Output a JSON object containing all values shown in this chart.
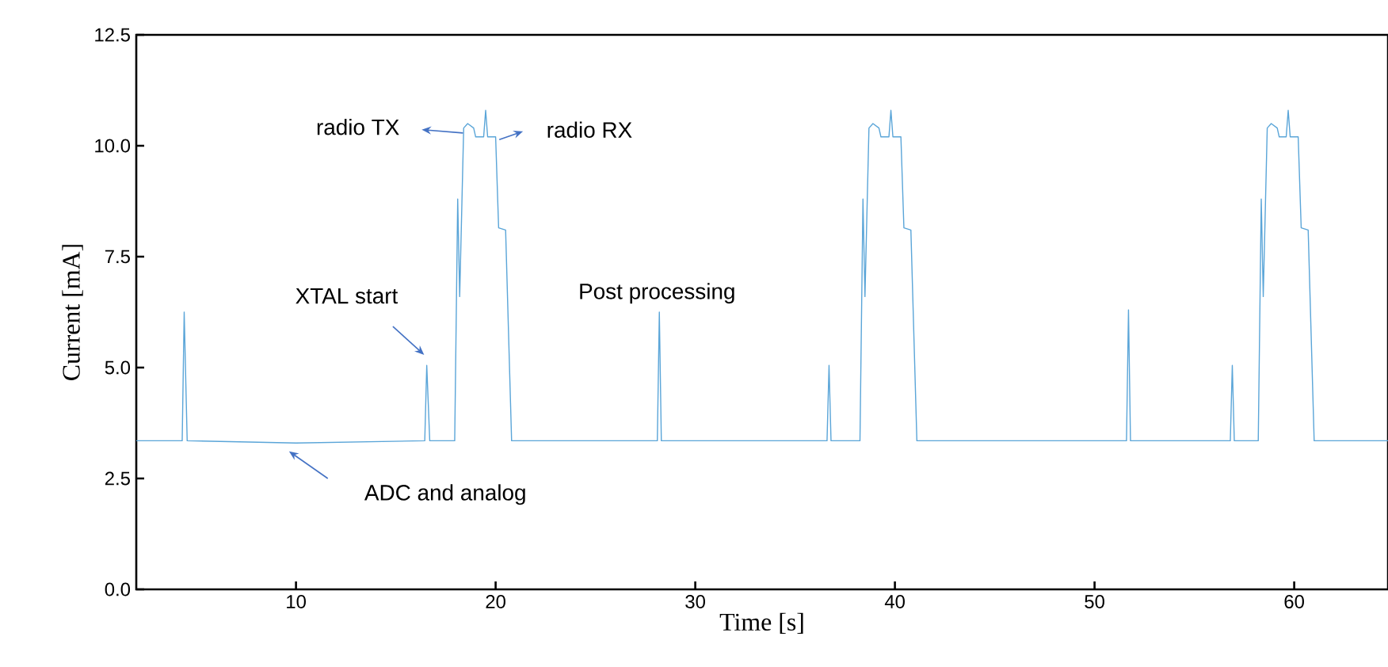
{
  "chart_data": {
    "type": "line",
    "xlabel": "Time [s]",
    "ylabel": "Current [mA]",
    "xlim": [
      2,
      64.7
    ],
    "ylim": [
      0,
      12.5
    ],
    "xticks": [
      10,
      20,
      30,
      40,
      50,
      60
    ],
    "yticks": [
      {
        "value": 0,
        "label": "0.0"
      },
      {
        "value": 2.5,
        "label": "2.5"
      },
      {
        "value": 5,
        "label": "5.0"
      },
      {
        "value": 7.5,
        "label": "7.5"
      },
      {
        "value": 10,
        "label": "10.0"
      },
      {
        "value": 12.5,
        "label": "12.5"
      }
    ],
    "marker": "none",
    "line_style": "solid",
    "series": [
      {
        "color": "#5aa5d8",
        "x": [
          2.0,
          4.3,
          4.4,
          4.55,
          10,
          16.45,
          16.55,
          16.7,
          17.95,
          18.1,
          18.2,
          18.4,
          18.6,
          18.9,
          19.0,
          19.4,
          19.5,
          19.6,
          20.0,
          20.15,
          20.5,
          20.8,
          28.1,
          28.2,
          28.3,
          36.6,
          36.7,
          36.8,
          38.25,
          38.4,
          38.5,
          38.7,
          38.9,
          39.2,
          39.3,
          39.7,
          39.8,
          39.9,
          40.3,
          40.45,
          40.8,
          41.1,
          51.6,
          51.7,
          51.8,
          56.8,
          56.9,
          57.0,
          58.2,
          58.35,
          58.45,
          58.65,
          58.85,
          59.15,
          59.25,
          59.6,
          59.7,
          59.8,
          60.2,
          60.35,
          60.7,
          61.0,
          64.7
        ],
        "values": [
          3.35,
          3.35,
          6.25,
          3.35,
          3.3,
          3.35,
          5.05,
          3.35,
          3.35,
          8.8,
          6.6,
          10.4,
          10.5,
          10.4,
          10.2,
          10.2,
          10.8,
          10.2,
          10.2,
          8.15,
          8.1,
          3.35,
          3.35,
          6.25,
          3.35,
          3.35,
          5.05,
          3.35,
          3.35,
          8.8,
          6.6,
          10.4,
          10.5,
          10.4,
          10.2,
          10.2,
          10.8,
          10.2,
          10.2,
          8.15,
          8.1,
          3.35,
          3.35,
          6.3,
          3.35,
          3.35,
          5.05,
          3.35,
          3.35,
          8.8,
          6.6,
          10.4,
          10.5,
          10.4,
          10.2,
          10.2,
          10.8,
          10.2,
          10.2,
          8.15,
          8.1,
          3.35,
          3.35
        ]
      }
    ],
    "annotations": [
      "radio TX",
      "radio RX",
      "XTAL start",
      "Post processing",
      "ADC and analog"
    ]
  }
}
